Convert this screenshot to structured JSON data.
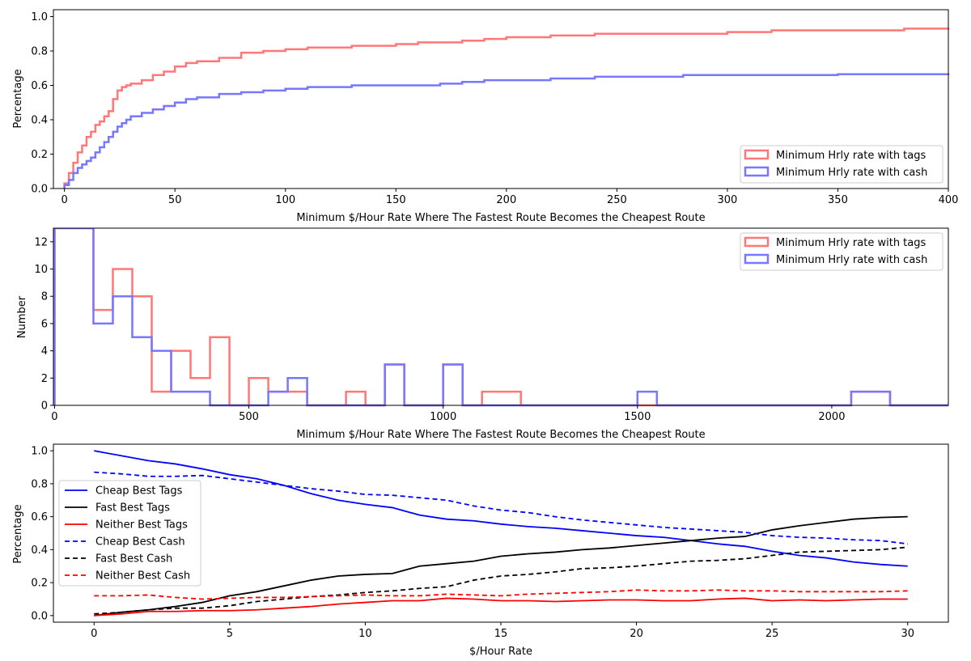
{
  "chart_data": [
    {
      "type": "line",
      "step": true,
      "xlabel": "Minimum $/Hour Rate Where The Fastest Route Becomes the Cheapest Route",
      "ylabel": "Percentage",
      "xlim": [
        -5,
        400
      ],
      "ylim": [
        0,
        1.04
      ],
      "xticks": [
        0,
        50,
        100,
        150,
        200,
        250,
        300,
        350,
        400
      ],
      "yticks": [
        0.0,
        0.2,
        0.4,
        0.6,
        0.8,
        1.0
      ],
      "ytick_labels": [
        "0.0",
        "0.2",
        "0.4",
        "0.6",
        "0.8",
        "1.0"
      ],
      "legend_position": "lower-right",
      "series": [
        {
          "name": "Minimum Hrly rate with tags",
          "color": "#ff7777",
          "x": [
            0,
            2,
            4,
            6,
            8,
            10,
            12,
            14,
            16,
            18,
            20,
            22,
            24,
            26,
            28,
            30,
            35,
            40,
            45,
            50,
            55,
            60,
            70,
            80,
            90,
            100,
            110,
            130,
            150,
            160,
            180,
            190,
            200,
            220,
            240,
            300,
            320,
            350,
            380,
            400
          ],
          "y": [
            0.03,
            0.09,
            0.15,
            0.21,
            0.25,
            0.3,
            0.33,
            0.37,
            0.39,
            0.42,
            0.45,
            0.52,
            0.57,
            0.59,
            0.6,
            0.61,
            0.63,
            0.66,
            0.68,
            0.71,
            0.73,
            0.74,
            0.76,
            0.79,
            0.8,
            0.81,
            0.82,
            0.83,
            0.84,
            0.85,
            0.86,
            0.87,
            0.88,
            0.89,
            0.9,
            0.91,
            0.92,
            0.92,
            0.93,
            0.935
          ]
        },
        {
          "name": "Minimum Hrly rate with cash",
          "color": "#7777ff",
          "x": [
            0,
            2,
            4,
            6,
            8,
            10,
            12,
            14,
            16,
            18,
            20,
            22,
            24,
            26,
            28,
            30,
            35,
            40,
            45,
            50,
            55,
            60,
            70,
            80,
            90,
            100,
            110,
            130,
            150,
            170,
            180,
            190,
            220,
            240,
            260,
            280,
            300,
            350,
            400
          ],
          "y": [
            0.02,
            0.05,
            0.09,
            0.12,
            0.14,
            0.16,
            0.18,
            0.21,
            0.24,
            0.27,
            0.3,
            0.33,
            0.36,
            0.38,
            0.4,
            0.42,
            0.44,
            0.46,
            0.48,
            0.5,
            0.52,
            0.53,
            0.55,
            0.56,
            0.57,
            0.58,
            0.59,
            0.6,
            0.6,
            0.61,
            0.62,
            0.63,
            0.64,
            0.65,
            0.65,
            0.66,
            0.66,
            0.665,
            0.67
          ]
        }
      ]
    },
    {
      "type": "bar",
      "histogram": true,
      "xlabel": "Minimum $/Hour Rate Where The Fastest Route Becomes the Cheapest Route",
      "ylabel": "Number",
      "xlim": [
        -3,
        2300
      ],
      "ylim": [
        0,
        13
      ],
      "xticks": [
        0,
        500,
        1000,
        1500,
        2000
      ],
      "yticks": [
        0,
        2,
        4,
        6,
        8,
        10,
        12
      ],
      "bin_width": 50,
      "legend_position": "upper-right",
      "series": [
        {
          "name": "Minimum Hrly rate with tags",
          "color": "#ff7777",
          "bin_starts": [
            0,
            100,
            150,
            200,
            250,
            300,
            350,
            400,
            450,
            500,
            550,
            600,
            650,
            700,
            750,
            800,
            850,
            900,
            950,
            1000,
            1050,
            1100,
            1150,
            1200,
            1250,
            1300,
            1350,
            1400,
            1450,
            1500,
            1550,
            1600,
            1650,
            1700,
            1750,
            1800,
            1850,
            1900,
            1950,
            2000,
            2050,
            2100,
            2150
          ],
          "counts": [
            13,
            7,
            10,
            8,
            1,
            4,
            2,
            5,
            0,
            2,
            1,
            1,
            0,
            0,
            1,
            0,
            3,
            0,
            0,
            3,
            0,
            1,
            1,
            0,
            0,
            0,
            0,
            0,
            0,
            0,
            0,
            0,
            0,
            0,
            0,
            0,
            0,
            0,
            0,
            0,
            1,
            1,
            0
          ]
        },
        {
          "name": "Minimum Hrly rate with cash",
          "color": "#7777ff",
          "bin_starts": [
            0,
            100,
            150,
            200,
            250,
            300,
            350,
            400,
            450,
            500,
            550,
            600,
            650,
            700,
            750,
            800,
            850,
            900,
            950,
            1000,
            1050,
            1100,
            1150,
            1200,
            1250,
            1300,
            1350,
            1400,
            1450,
            1500,
            1550,
            1600,
            1650,
            1700,
            1750,
            1800,
            1850,
            1900,
            1950,
            2000,
            2050,
            2100,
            2150
          ],
          "counts": [
            13,
            6,
            8,
            5,
            4,
            1,
            1,
            0,
            0,
            0,
            1,
            2,
            0,
            0,
            0,
            0,
            3,
            0,
            0,
            3,
            0,
            0,
            0,
            0,
            0,
            0,
            0,
            0,
            0,
            1,
            0,
            0,
            0,
            0,
            0,
            0,
            0,
            0,
            0,
            0,
            1,
            1,
            0
          ]
        }
      ]
    },
    {
      "type": "line",
      "xlabel": "$/Hour Rate",
      "ylabel": "Percentage",
      "xlim": [
        -1.5,
        31.5
      ],
      "ylim": [
        -0.04,
        1.04
      ],
      "xticks": [
        0,
        5,
        10,
        15,
        20,
        25,
        30
      ],
      "yticks": [
        0.0,
        0.2,
        0.4,
        0.6,
        0.8,
        1.0
      ],
      "ytick_labels": [
        "0.0",
        "0.2",
        "0.4",
        "0.6",
        "0.8",
        "1.0"
      ],
      "legend_position": "center-left",
      "x": [
        0,
        1,
        2,
        3,
        4,
        5,
        6,
        7,
        8,
        9,
        10,
        11,
        12,
        13,
        14,
        15,
        16,
        17,
        18,
        19,
        20,
        21,
        22,
        23,
        24,
        25,
        26,
        27,
        28,
        29,
        30
      ],
      "series": [
        {
          "name": "Cheap Best Tags",
          "color": "#0000ff",
          "dashed": false,
          "values": [
            1.0,
            0.97,
            0.94,
            0.92,
            0.89,
            0.855,
            0.83,
            0.79,
            0.74,
            0.7,
            0.675,
            0.655,
            0.61,
            0.585,
            0.575,
            0.555,
            0.54,
            0.53,
            0.515,
            0.5,
            0.485,
            0.475,
            0.455,
            0.435,
            0.42,
            0.39,
            0.365,
            0.35,
            0.325,
            0.31,
            0.3
          ]
        },
        {
          "name": "Fast Best Tags",
          "color": "#000000",
          "dashed": false,
          "values": [
            0.0,
            0.02,
            0.035,
            0.055,
            0.08,
            0.12,
            0.145,
            0.18,
            0.215,
            0.24,
            0.25,
            0.255,
            0.3,
            0.315,
            0.33,
            0.36,
            0.375,
            0.385,
            0.4,
            0.41,
            0.425,
            0.44,
            0.455,
            0.47,
            0.48,
            0.52,
            0.545,
            0.565,
            0.585,
            0.595,
            0.6
          ]
        },
        {
          "name": "Neither Best Tags",
          "color": "#ff0000",
          "dashed": false,
          "values": [
            0.0,
            0.01,
            0.025,
            0.025,
            0.03,
            0.03,
            0.035,
            0.045,
            0.055,
            0.07,
            0.08,
            0.09,
            0.09,
            0.105,
            0.1,
            0.09,
            0.09,
            0.085,
            0.09,
            0.095,
            0.095,
            0.09,
            0.09,
            0.1,
            0.105,
            0.09,
            0.095,
            0.09,
            0.095,
            0.1,
            0.1
          ]
        },
        {
          "name": "Cheap Best Cash",
          "color": "#0000ff",
          "dashed": true,
          "values": [
            0.87,
            0.86,
            0.845,
            0.845,
            0.85,
            0.83,
            0.81,
            0.79,
            0.77,
            0.755,
            0.735,
            0.73,
            0.715,
            0.7,
            0.665,
            0.64,
            0.625,
            0.6,
            0.58,
            0.565,
            0.55,
            0.535,
            0.525,
            0.515,
            0.505,
            0.485,
            0.475,
            0.47,
            0.46,
            0.455,
            0.435
          ]
        },
        {
          "name": "Fast Best Cash",
          "color": "#000000",
          "dashed": true,
          "values": [
            0.01,
            0.02,
            0.035,
            0.045,
            0.045,
            0.06,
            0.085,
            0.1,
            0.115,
            0.125,
            0.14,
            0.15,
            0.165,
            0.175,
            0.215,
            0.24,
            0.25,
            0.265,
            0.285,
            0.29,
            0.3,
            0.315,
            0.33,
            0.335,
            0.345,
            0.365,
            0.385,
            0.39,
            0.395,
            0.4,
            0.415
          ]
        },
        {
          "name": "Neither Best Cash",
          "color": "#ff0000",
          "dashed": true,
          "values": [
            0.12,
            0.12,
            0.125,
            0.11,
            0.1,
            0.105,
            0.11,
            0.11,
            0.115,
            0.12,
            0.125,
            0.12,
            0.12,
            0.13,
            0.125,
            0.12,
            0.13,
            0.135,
            0.14,
            0.145,
            0.155,
            0.15,
            0.15,
            0.155,
            0.15,
            0.15,
            0.145,
            0.145,
            0.145,
            0.145,
            0.15
          ]
        }
      ]
    }
  ]
}
